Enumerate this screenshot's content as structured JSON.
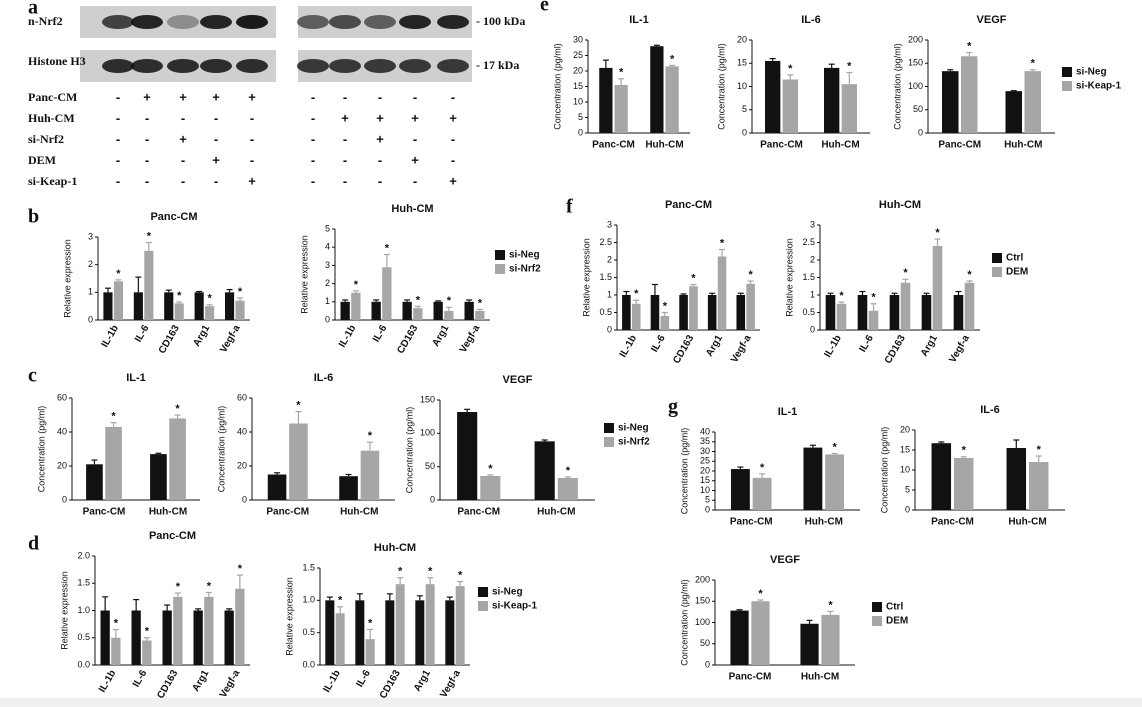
{
  "panel_labels": [
    "a",
    "b",
    "c",
    "d",
    "e",
    "f",
    "g"
  ],
  "blot": {
    "bands": [
      "n-Nrf2",
      "Histone H3"
    ],
    "sizes": [
      "- 100 kDa",
      "- 17 kDa"
    ],
    "treatments": [
      {
        "name": "Panc-CM",
        "signs": [
          "-",
          "+",
          "+",
          "+",
          "+",
          "-",
          "-",
          "-",
          "-",
          "-"
        ]
      },
      {
        "name": "Huh-CM",
        "signs": [
          "-",
          "-",
          "-",
          "-",
          "-",
          "-",
          "+",
          "+",
          "+",
          "+"
        ]
      },
      {
        "name": "si-Nrf2",
        "signs": [
          "-",
          "-",
          "+",
          "-",
          "-",
          "-",
          "-",
          "+",
          "-",
          "-"
        ]
      },
      {
        "name": "DEM",
        "signs": [
          "-",
          "-",
          "-",
          "+",
          "-",
          "-",
          "-",
          "-",
          "+",
          "-"
        ]
      },
      {
        "name": "si-Keap-1",
        "signs": [
          "-",
          "-",
          "-",
          "-",
          "+",
          "-",
          "-",
          "-",
          "-",
          "+"
        ]
      }
    ]
  },
  "chart_data": [
    {
      "type": "bar",
      "title": "Panc-CM",
      "y_label": "Relative expression",
      "categories": [
        "IL-1b",
        "IL-6",
        "CD163",
        "Arg1",
        "Vegf-a"
      ],
      "ylim": [
        0,
        3
      ],
      "yticks": [
        0,
        1,
        2,
        3
      ],
      "series": [
        {
          "color": "#111111",
          "values": [
            1,
            1,
            1,
            1,
            1
          ],
          "errors": [
            0.15,
            0.55,
            0.08,
            0.03,
            0.1
          ]
        },
        {
          "color": "#a6a6a6",
          "values": [
            1.4,
            2.5,
            0.6,
            0.5,
            0.7
          ],
          "errors": [
            0.05,
            0.3,
            0.05,
            0.05,
            0.1
          ],
          "significance": [
            "*",
            "*",
            "*",
            "*",
            "*"
          ]
        }
      ]
    },
    {
      "type": "bar",
      "title": "Huh-CM",
      "y_label": "Relative expression",
      "categories": [
        "IL-1b",
        "IL-6",
        "CD163",
        "Arg1",
        "Vegf-a"
      ],
      "ylim": [
        0,
        5
      ],
      "yticks": [
        0,
        1,
        2,
        3,
        4,
        5
      ],
      "legend": "right",
      "series": [
        {
          "name": "si-Neg",
          "color": "#111111",
          "values": [
            1,
            1,
            1,
            1,
            1
          ],
          "errors": [
            0.1,
            0.1,
            0.1,
            0.05,
            0.1
          ]
        },
        {
          "name": "si-Nrf2",
          "color": "#a6a6a6",
          "values": [
            1.5,
            2.9,
            0.65,
            0.5,
            0.5
          ],
          "errors": [
            0.1,
            0.7,
            0.1,
            0.2,
            0.08
          ],
          "significance": [
            "*",
            "*",
            "*",
            "*",
            "*"
          ]
        }
      ]
    },
    {
      "type": "bar",
      "title": "IL-1",
      "y_label": "Concentration (pg/ml)",
      "categories": [
        "Panc-CM",
        "Huh-CM"
      ],
      "ylim": [
        0,
        60
      ],
      "yticks": [
        0,
        20,
        40,
        60
      ],
      "series": [
        {
          "color": "#111111",
          "values": [
            21,
            27
          ],
          "errors": [
            2.5,
            0.5
          ]
        },
        {
          "color": "#a6a6a6",
          "values": [
            43,
            48
          ],
          "errors": [
            2.5,
            2
          ],
          "significance": [
            "*",
            "*"
          ]
        }
      ]
    },
    {
      "type": "bar",
      "title": "IL-6",
      "y_label": "Concentration (pg/ml)",
      "categories": [
        "Panc-CM",
        "Huh-CM"
      ],
      "ylim": [
        0,
        60
      ],
      "yticks": [
        0,
        20,
        40,
        60
      ],
      "series": [
        {
          "color": "#111111",
          "values": [
            15,
            14
          ],
          "errors": [
            1,
            1
          ]
        },
        {
          "color": "#a6a6a6",
          "values": [
            45,
            29
          ],
          "errors": [
            7,
            5
          ],
          "significance": [
            "*",
            "*"
          ]
        }
      ]
    },
    {
      "type": "bar",
      "title": "VEGF",
      "y_label": "Concentration (pg/ml)",
      "categories": [
        "Panc-CM",
        "Huh-CM"
      ],
      "ylim": [
        0,
        150
      ],
      "yticks": [
        0,
        50,
        100,
        150
      ],
      "legend": "right",
      "series": [
        {
          "name": "si-Neg",
          "color": "#111111",
          "values": [
            132,
            88
          ],
          "errors": [
            4,
            2
          ]
        },
        {
          "name": "si-Nrf2",
          "color": "#a6a6a6",
          "values": [
            36,
            33
          ],
          "errors": [
            1.5,
            1.5
          ],
          "significance": [
            "*",
            "*"
          ]
        }
      ]
    },
    {
      "type": "bar",
      "title": "Panc-CM",
      "y_label": "Relative expression",
      "categories": [
        "IL-1b",
        "IL-6",
        "CD163",
        "Arg1",
        "Vegf-a"
      ],
      "ylim": [
        0,
        2
      ],
      "yticks": [
        {
          "value": 0,
          "label": "0.0"
        },
        0.5,
        {
          "value": 1,
          "label": "1.0"
        },
        1.5,
        {
          "value": 2,
          "label": "2.0"
        }
      ],
      "series": [
        {
          "color": "#111111",
          "values": [
            1,
            1,
            1,
            1,
            1
          ],
          "errors": [
            0.25,
            0.2,
            0.1,
            0.03,
            0.03
          ]
        },
        {
          "color": "#a6a6a6",
          "values": [
            0.5,
            0.45,
            1.25,
            1.25,
            1.4
          ],
          "errors": [
            0.15,
            0.05,
            0.07,
            0.08,
            0.25
          ],
          "significance": [
            "*",
            "*",
            "*",
            "*",
            "*"
          ]
        }
      ]
    },
    {
      "type": "bar",
      "title": "Huh-CM",
      "y_label": "Relative expression",
      "categories": [
        "IL-1b",
        "IL-6",
        "CD163",
        "Arg1",
        "Vegf-a"
      ],
      "ylim": [
        0,
        1.5
      ],
      "yticks": [
        {
          "value": 0,
          "label": "0.0"
        },
        0.5,
        {
          "value": 1,
          "label": "1.0"
        },
        1.5
      ],
      "legend": "right",
      "series": [
        {
          "name": "si-Neg",
          "color": "#111111",
          "values": [
            1,
            1,
            1,
            1,
            1
          ],
          "errors": [
            0.05,
            0.1,
            0.1,
            0.07,
            0.05
          ]
        },
        {
          "name": "si-Keap-1",
          "color": "#a6a6a6",
          "values": [
            0.8,
            0.4,
            1.25,
            1.25,
            1.22
          ],
          "errors": [
            0.1,
            0.15,
            0.1,
            0.1,
            0.07
          ],
          "significance": [
            "*",
            "*",
            "*",
            "*",
            "*"
          ]
        }
      ]
    },
    {
      "type": "bar",
      "title": "IL-1",
      "y_label": "Concentration (pg/ml)",
      "categories": [
        "Panc-CM",
        "Huh-CM"
      ],
      "ylim": [
        0,
        30
      ],
      "yticks": [
        0,
        5,
        10,
        15,
        20,
        25,
        30
      ],
      "series": [
        {
          "color": "#111111",
          "values": [
            21,
            28
          ],
          "errors": [
            2.5,
            0.3
          ]
        },
        {
          "color": "#a6a6a6",
          "values": [
            15.5,
            21.5
          ],
          "errors": [
            2,
            0.3
          ],
          "significance": [
            "*",
            "*"
          ]
        }
      ]
    },
    {
      "type": "bar",
      "title": "IL-6",
      "y_label": "Concentration (pg/ml)",
      "categories": [
        "Panc-CM",
        "Huh-CM"
      ],
      "ylim": [
        0,
        20
      ],
      "yticks": [
        0,
        5,
        10,
        15,
        20
      ],
      "series": [
        {
          "color": "#111111",
          "values": [
            15.5,
            14
          ],
          "errors": [
            0.5,
            0.8
          ]
        },
        {
          "color": "#a6a6a6",
          "values": [
            11.5,
            10.5
          ],
          "errors": [
            1,
            2.5
          ],
          "significance": [
            "*",
            "*"
          ]
        }
      ]
    },
    {
      "type": "bar",
      "title": "VEGF",
      "y_label": "Concentration (pg/ml)",
      "categories": [
        "Panc-CM",
        "Huh-CM"
      ],
      "ylim": [
        0,
        200
      ],
      "yticks": [
        0,
        50,
        100,
        150,
        200
      ],
      "legend": "right",
      "series": [
        {
          "name": "si-Neg",
          "color": "#111111",
          "values": [
            133,
            90
          ],
          "errors": [
            3,
            1
          ]
        },
        {
          "name": "si-Keap-1",
          "color": "#a6a6a6",
          "values": [
            165,
            133
          ],
          "errors": [
            8,
            3
          ],
          "significance": [
            "*",
            "*"
          ]
        }
      ]
    },
    {
      "type": "bar",
      "title": "Panc-CM",
      "y_label": "Relative expression",
      "categories": [
        "IL-1b",
        "IL-6",
        "CD163",
        "Arg1",
        "Vegf-a"
      ],
      "ylim": [
        0,
        3
      ],
      "yticks": [
        0,
        0.5,
        1,
        1.5,
        2,
        2.5,
        3
      ],
      "series": [
        {
          "color": "#111111",
          "values": [
            1,
            1,
            1,
            1,
            1
          ],
          "errors": [
            0.1,
            0.3,
            0.03,
            0.05,
            0.05
          ]
        },
        {
          "color": "#a6a6a6",
          "values": [
            0.75,
            0.4,
            1.25,
            2.1,
            1.32
          ],
          "errors": [
            0.1,
            0.1,
            0.05,
            0.2,
            0.08
          ],
          "significance": [
            "*",
            "*",
            "*",
            "*",
            "*"
          ]
        }
      ]
    },
    {
      "type": "bar",
      "title": "Huh-CM",
      "y_label": "Relative expression",
      "categories": [
        "IL-1b",
        "IL-6",
        "CD163",
        "Arg1",
        "Vegf-a"
      ],
      "ylim": [
        0,
        3
      ],
      "yticks": [
        0,
        0.5,
        1,
        1.5,
        2,
        2.5,
        3
      ],
      "legend": "right",
      "series": [
        {
          "name": "Ctrl",
          "color": "#111111",
          "values": [
            1,
            1,
            1,
            1,
            1
          ],
          "errors": [
            0.05,
            0.1,
            0.05,
            0.05,
            0.1
          ]
        },
        {
          "name": "DEM",
          "color": "#a6a6a6",
          "values": [
            0.75,
            0.55,
            1.35,
            2.4,
            1.35
          ],
          "errors": [
            0.05,
            0.2,
            0.1,
            0.2,
            0.05
          ],
          "significance": [
            "*",
            "*",
            "*",
            "*",
            "*"
          ]
        }
      ]
    },
    {
      "type": "bar",
      "title": "IL-1",
      "y_label": "Concentration (pg/ml)",
      "categories": [
        "Panc-CM",
        "Huh-CM"
      ],
      "ylim": [
        0,
        40
      ],
      "yticks": [
        0,
        5,
        10,
        15,
        20,
        25,
        30,
        35,
        40
      ],
      "series": [
        {
          "color": "#111111",
          "values": [
            21,
            32
          ],
          "errors": [
            1,
            1.2
          ]
        },
        {
          "color": "#a6a6a6",
          "values": [
            16.5,
            28.5
          ],
          "errors": [
            2,
            0.5
          ],
          "significance": [
            "*",
            "*"
          ]
        }
      ]
    },
    {
      "type": "bar",
      "title": "IL-6",
      "y_label": "Concentration (pg/ml)",
      "categories": [
        "Panc-CM",
        "Huh-CM"
      ],
      "ylim": [
        0,
        20
      ],
      "yticks": [
        0,
        5,
        10,
        15,
        20
      ],
      "series": [
        {
          "color": "#111111",
          "values": [
            16.7,
            15.5
          ],
          "errors": [
            0.3,
            2
          ]
        },
        {
          "color": "#a6a6a6",
          "values": [
            13,
            12
          ],
          "errors": [
            0.3,
            1.5
          ],
          "significance": [
            "*",
            "*"
          ]
        }
      ]
    },
    {
      "type": "bar",
      "title": "VEGF",
      "y_label": "Concentration (pg/ml)",
      "categories": [
        "Panc-CM",
        "Huh-CM"
      ],
      "ylim": [
        0,
        200
      ],
      "yticks": [
        0,
        50,
        100,
        150,
        200
      ],
      "legend": "right",
      "series": [
        {
          "name": "Ctrl",
          "color": "#111111",
          "values": [
            128,
            97
          ],
          "errors": [
            2,
            8
          ]
        },
        {
          "name": "DEM",
          "color": "#a6a6a6",
          "values": [
            150,
            118
          ],
          "errors": [
            3,
            8
          ],
          "significance": [
            "*",
            "*"
          ]
        }
      ]
    }
  ]
}
